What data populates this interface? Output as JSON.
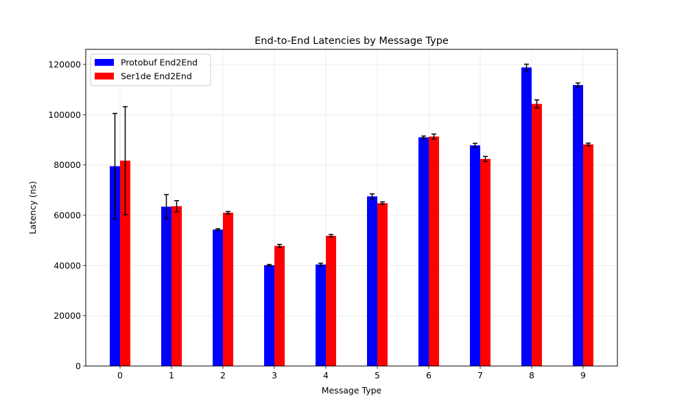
{
  "chart_data": {
    "type": "bar",
    "title": "End-to-End Latencies by Message Type",
    "xlabel": "Message Type",
    "ylabel": "Latency (ns)",
    "categories": [
      "0",
      "1",
      "2",
      "3",
      "4",
      "5",
      "6",
      "7",
      "8",
      "9"
    ],
    "ylim": [
      0,
      126000
    ],
    "yticks": [
      0,
      20000,
      40000,
      60000,
      80000,
      100000,
      120000
    ],
    "grid": true,
    "legend_position": "top-left",
    "series": [
      {
        "name": "Protobuf End2End",
        "color": "#0000ff",
        "values": [
          79500,
          63400,
          54300,
          40100,
          40400,
          67500,
          91000,
          87800,
          118800,
          111800
        ],
        "errors": [
          21000,
          4800,
          300,
          300,
          500,
          1000,
          500,
          800,
          1300,
          800
        ]
      },
      {
        "name": "Ser1de End2End",
        "color": "#ff0000",
        "values": [
          81700,
          63600,
          61000,
          47800,
          51800,
          64800,
          91300,
          82400,
          104300,
          88200
        ],
        "errors": [
          21500,
          2200,
          500,
          600,
          500,
          500,
          1000,
          1000,
          1600,
          500
        ]
      }
    ]
  }
}
